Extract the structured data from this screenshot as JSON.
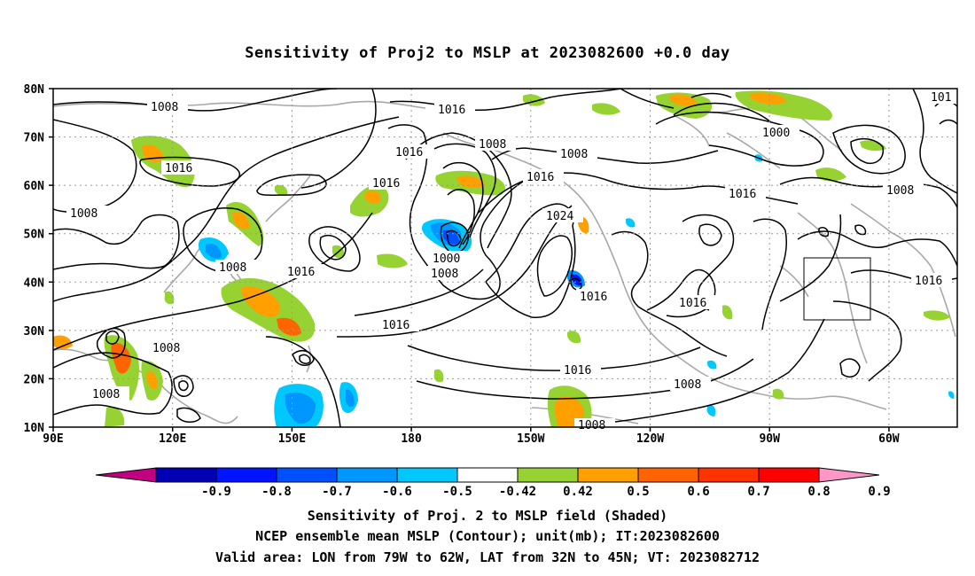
{
  "title": "Sensitivity of Proj2 to MSLP at 2023082600 +0.0 day",
  "map": {
    "lat_labels": [
      "80N",
      "70N",
      "60N",
      "50N",
      "40N",
      "30N",
      "20N",
      "10N"
    ],
    "lon_labels": [
      "90E",
      "120E",
      "150E",
      "180",
      "150W",
      "120W",
      "90W",
      "60W"
    ],
    "contour_labels": [
      "1008",
      "1016",
      "1016",
      "1008",
      "1008",
      "1016",
      "1008",
      "1016",
      "1000",
      "1008",
      "1016",
      "1016",
      "1008",
      "1024",
      "1016",
      "1000",
      "1008",
      "1016",
      "1016",
      "1016",
      "1008",
      "1008",
      "1008",
      "1016",
      "1008",
      "1016",
      "101"
    ],
    "valid_area": {
      "lon": [
        "79W",
        "62W"
      ],
      "lat": [
        "32N",
        "45N"
      ]
    }
  },
  "colorbar": {
    "colors": [
      "#c00080",
      "#0000b4",
      "#0014ff",
      "#0050ff",
      "#0096ff",
      "#00c8ff",
      "#ffffff",
      "#96d232",
      "#ffa000",
      "#ff6400",
      "#ff3200",
      "#ff0000",
      "#ff96c8"
    ],
    "labels": [
      "-0.9",
      "-0.8",
      "-0.7",
      "-0.6",
      "-0.5",
      "-0.42",
      "0.42",
      "0.5",
      "0.6",
      "0.7",
      "0.8",
      "0.9"
    ]
  },
  "captions": [
    "Sensitivity of Proj. 2 to MSLP field (Shaded)",
    "NCEP ensemble mean MSLP (Contour); unit(mb); IT:2023082600",
    "Valid area: LON from 79W to 62W, LAT from 32N to 45N; VT: 2023082712"
  ]
}
